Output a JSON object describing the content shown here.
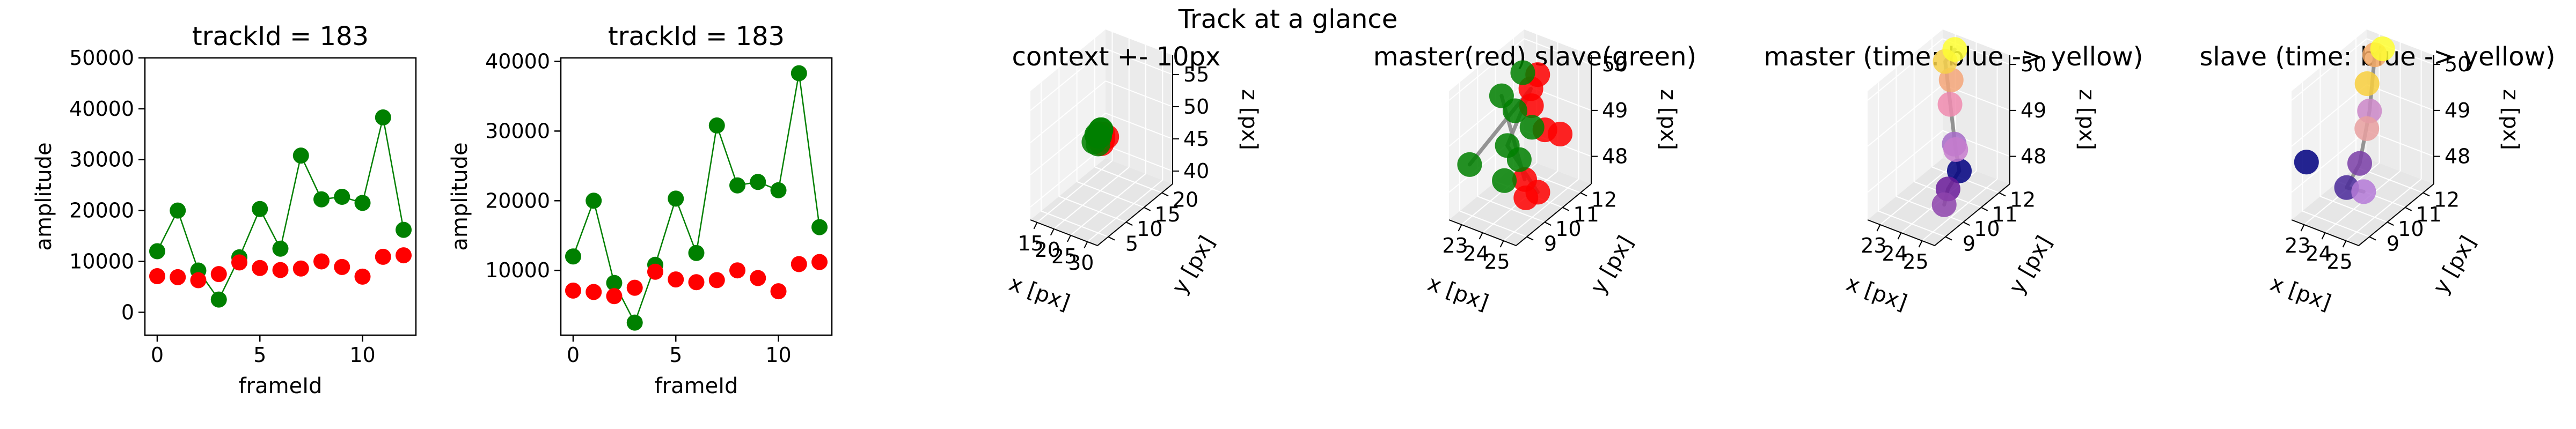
{
  "suptitle": "Track at a glance",
  "chart_data": [
    {
      "type": "scatter",
      "title": "trackId = 183",
      "xlabel": "frameId",
      "ylabel": "amplitude",
      "xlim": [
        -0.6,
        12.6
      ],
      "ylim": [
        -4500,
        50000
      ],
      "xticks": [
        0,
        5,
        10
      ],
      "yticks": [
        0,
        10000,
        20000,
        30000,
        40000,
        50000
      ],
      "grid": false,
      "series": [
        {
          "color": "#008000",
          "line": true,
          "x": [
            0,
            1,
            2,
            3,
            4,
            5,
            6,
            7,
            8,
            9,
            10,
            11,
            12
          ],
          "y": [
            12000,
            20000,
            8200,
            2500,
            10800,
            20300,
            12500,
            30800,
            22200,
            22700,
            21500,
            38300,
            16200
          ]
        },
        {
          "color": "#ff0000",
          "line": false,
          "x": [
            0,
            1,
            2,
            3,
            4,
            5,
            6,
            7,
            8,
            9,
            10,
            11,
            12
          ],
          "y": [
            7100,
            6900,
            6300,
            7500,
            9800,
            8700,
            8300,
            8600,
            10000,
            8900,
            7000,
            10900,
            11200
          ]
        }
      ]
    },
    {
      "type": "scatter",
      "title": "trackId = 183",
      "xlabel": "frameId",
      "ylabel": "amplitude",
      "xlim": [
        -0.6,
        12.6
      ],
      "ylim": [
        700,
        40500
      ],
      "xticks": [
        0,
        5,
        10
      ],
      "yticks": [
        10000,
        20000,
        30000,
        40000
      ],
      "grid": false,
      "series": [
        {
          "color": "#008000",
          "line": true,
          "x": [
            0,
            1,
            2,
            3,
            4,
            5,
            6,
            7,
            8,
            9,
            10,
            11,
            12
          ],
          "y": [
            12000,
            20000,
            8200,
            2500,
            10800,
            20300,
            12500,
            30800,
            22200,
            22700,
            21500,
            38300,
            16200
          ]
        },
        {
          "color": "#ff0000",
          "line": false,
          "x": [
            0,
            1,
            2,
            3,
            4,
            5,
            6,
            7,
            8,
            9,
            10,
            11,
            12
          ],
          "y": [
            7100,
            6900,
            6300,
            7500,
            9800,
            8700,
            8300,
            8600,
            10000,
            8900,
            7000,
            10900,
            11200
          ]
        }
      ]
    },
    {
      "type": "scatter3d",
      "title": "context +- 10px",
      "xlabel": "x [px]",
      "ylabel": "y [px]",
      "zlabel": "z [px]",
      "xlim": [
        13,
        33
      ],
      "ylim": [
        2,
        23
      ],
      "zlim": [
        38,
        58
      ],
      "xticks": [
        15,
        20,
        25,
        30
      ],
      "yticks": [
        5,
        10,
        15,
        20
      ],
      "zticks": [
        40,
        45,
        50,
        55
      ],
      "grid": true,
      "series": [
        {
          "color": "#ff0000",
          "points": [
            [
              24.5,
              10.5,
              49.8
            ],
            [
              25.2,
              10.8,
              49.2
            ],
            [
              25,
              11,
              48.8
            ],
            [
              24.8,
              11.2,
              49.5
            ],
            [
              25.5,
              10.2,
              48.6
            ],
            [
              24.2,
              11.5,
              49.1
            ],
            [
              25.3,
              11.8,
              48.9
            ],
            [
              24.6,
              10.9,
              49.6
            ]
          ]
        },
        {
          "color": "#008000",
          "points": [
            [
              23.2,
              10.2,
              48.4
            ],
            [
              23.6,
              10.6,
              49.4
            ],
            [
              24,
              11.3,
              49.9
            ],
            [
              23.4,
              11.6,
              48.7
            ],
            [
              23.8,
              10.9,
              49.1
            ],
            [
              23.1,
              11.2,
              48.9
            ],
            [
              24.2,
              10.4,
              48.2
            ],
            [
              23.5,
              11.9,
              49.6
            ]
          ]
        }
      ]
    },
    {
      "type": "scatter3d",
      "title": "master(red) slave(green)",
      "xlabel": "x [px]",
      "ylabel": "y [px]",
      "zlabel": "z [px]",
      "xlim": [
        22.4,
        25.6
      ],
      "ylim": [
        8.4,
        12.6
      ],
      "zlim": [
        47.4,
        50.2
      ],
      "xticks": [
        23,
        24,
        25
      ],
      "yticks": [
        9,
        10,
        11,
        12
      ],
      "zticks": [
        48,
        49,
        50
      ],
      "grid": true,
      "series": [
        {
          "color": "#ff0000",
          "points": [
            [
              24.6,
              10.4,
              50.0
            ],
            [
              24.2,
              10.9,
              49.4
            ],
            [
              24.5,
              11.3,
              48.8
            ],
            [
              24.9,
              9.7,
              48.3
            ],
            [
              25.1,
              10.2,
              47.9
            ],
            [
              23.9,
              11.6,
              49.8
            ],
            [
              24.8,
              11.8,
              48.6
            ],
            [
              25.3,
              9.3,
              48.1
            ]
          ]
        },
        {
          "color": "#008000",
          "points": [
            [
              22.7,
              9.2,
              48.4
            ],
            [
              23.2,
              10.4,
              49.6
            ],
            [
              23.7,
              11.0,
              50.0
            ],
            [
              23.9,
              9.9,
              48.8
            ],
            [
              24.1,
              9.5,
              48.2
            ],
            [
              23.5,
              10.8,
              49.2
            ],
            [
              23.8,
              11.4,
              48.7
            ],
            [
              24.3,
              10.1,
              48.5
            ]
          ]
        }
      ],
      "paths": [
        {
          "color": "#888888",
          "points": [
            [
              22.7,
              9.2,
              48.4
            ],
            [
              24.6,
              10.4,
              50.0
            ],
            [
              23.9,
              9.9,
              48.8
            ],
            [
              25.1,
              10.2,
              47.9
            ]
          ]
        },
        {
          "color": "#888888",
          "points": [
            [
              23.2,
              10.4,
              49.6
            ],
            [
              24.9,
              9.7,
              48.3
            ],
            [
              24.3,
              10.1,
              48.5
            ]
          ]
        }
      ]
    },
    {
      "type": "scatter3d",
      "title": "master (time: blue -> yellow)",
      "xlabel": "x [px]",
      "ylabel": "y [px]",
      "zlabel": "z [px]",
      "xlim": [
        22.4,
        25.6
      ],
      "ylim": [
        8.4,
        12.6
      ],
      "zlim": [
        47.4,
        50.2
      ],
      "xticks": [
        23,
        24,
        25
      ],
      "yticks": [
        9,
        10,
        11,
        12
      ],
      "zticks": [
        48,
        49,
        50
      ],
      "grid": true,
      "series": [
        {
          "colors": [
            "#000080",
            "#6a1b9a",
            "#8e44ad",
            "#a66cc8",
            "#c77dce",
            "#f08bb0",
            "#f5a67a",
            "#f7d24a",
            "#ffff33"
          ],
          "points": [
            [
              24.9,
              10.6,
              48.2
            ],
            [
              24.7,
              10.2,
              47.9
            ],
            [
              25.2,
              9.4,
              47.9
            ],
            [
              24.4,
              10.9,
              48.6
            ],
            [
              24.3,
              11.1,
              48.4
            ],
            [
              23.6,
              11.6,
              49.1
            ],
            [
              23.4,
              11.9,
              49.5
            ],
            [
              23.2,
              11.8,
              49.9
            ],
            [
              23.4,
              12.1,
              50.1
            ]
          ]
        }
      ],
      "paths": [
        {
          "color": "#888888",
          "points": [
            [
              23.4,
              12.1,
              50.1
            ],
            [
              23.2,
              11.8,
              49.9
            ],
            [
              24.3,
              11.1,
              48.4
            ],
            [
              24.9,
              10.6,
              48.2
            ],
            [
              24.7,
              10.2,
              47.9
            ],
            [
              25.2,
              9.4,
              47.9
            ]
          ]
        }
      ]
    },
    {
      "type": "scatter3d",
      "title": "slave (time: blue -> yellow)",
      "xlabel": "x [px]",
      "ylabel": "y [px]",
      "zlabel": "z [px]",
      "xlim": [
        22.4,
        25.6
      ],
      "ylim": [
        8.4,
        12.6
      ],
      "zlim": [
        47.4,
        50.2
      ],
      "xticks": [
        23,
        24,
        25
      ],
      "yticks": [
        9,
        10,
        11,
        12
      ],
      "zticks": [
        48,
        49,
        50
      ],
      "grid": true,
      "series": [
        {
          "colors": [
            "#000080",
            "#4a2a9a",
            "#7b3fa8",
            "#b57bd8",
            "#cc88c8",
            "#e9a0a0",
            "#f5aa66",
            "#f9cf3e",
            "#ffff33"
          ],
          "points": [
            [
              22.6,
              9.0,
              48.5
            ],
            [
              24.0,
              9.6,
              48.0
            ],
            [
              24.2,
              10.1,
              48.4
            ],
            [
              24.9,
              9.5,
              48.1
            ],
            [
              23.9,
              11.0,
              49.2
            ],
            [
              23.6,
              11.2,
              48.7
            ],
            [
              23.3,
              12.0,
              50.0
            ],
            [
              23.1,
              11.8,
              49.4
            ],
            [
              23.5,
              12.2,
              50.1
            ]
          ]
        }
      ],
      "paths": [
        {
          "color": "#888888",
          "points": [
            [
              23.5,
              12.2,
              50.1
            ],
            [
              23.3,
              12.0,
              50.0
            ],
            [
              23.9,
              11.0,
              49.2
            ],
            [
              24.2,
              10.1,
              48.4
            ],
            [
              24.0,
              9.6,
              48.0
            ],
            [
              24.9,
              9.5,
              48.1
            ]
          ]
        }
      ]
    }
  ]
}
